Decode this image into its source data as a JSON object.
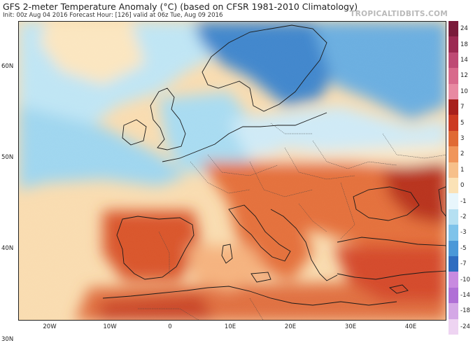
{
  "header": {
    "title": "GFS 2-meter Temperature Anomaly (°C) (based on CFSR 1981-2010 Climatology)",
    "subtitle": "Init: 00z Aug 04 2016   Forecast Hour: [126]   valid at 06z Tue, Aug 09 2016",
    "brand": "TROPICALTIDBITS.COM"
  },
  "map": {
    "lat_labels": [
      {
        "text": "60N",
        "lat": 60
      },
      {
        "text": "50N",
        "lat": 50
      },
      {
        "text": "40N",
        "lat": 40
      },
      {
        "text": "30N",
        "lat": 30
      }
    ],
    "lon_labels": [
      {
        "text": "20W",
        "lon": -20
      },
      {
        "text": "10W",
        "lon": -10
      },
      {
        "text": "0",
        "lon": 0
      },
      {
        "text": "10E",
        "lon": 10
      },
      {
        "text": "20E",
        "lon": 20
      },
      {
        "text": "30E",
        "lon": 30
      },
      {
        "text": "40E",
        "lon": 40
      }
    ]
  },
  "colorbar": {
    "levels": [
      {
        "label": "24",
        "color": "#7a1b3a"
      },
      {
        "label": "18",
        "color": "#9c2a52"
      },
      {
        "label": "14",
        "color": "#be4a74"
      },
      {
        "label": "12",
        "color": "#d86a8c"
      },
      {
        "label": "10",
        "color": "#e88aa2"
      },
      {
        "label": "7",
        "color": "#a8201c"
      },
      {
        "label": "5",
        "color": "#cc3a22"
      },
      {
        "label": "3",
        "color": "#e06a34"
      },
      {
        "label": "2",
        "color": "#f0955a"
      },
      {
        "label": "1",
        "color": "#f7c08a"
      },
      {
        "label": "0",
        "color": "#fbe2b6"
      },
      {
        "label": "-1",
        "color": "#e8f6fc"
      },
      {
        "label": "-2",
        "color": "#b5e0f2"
      },
      {
        "label": "-3",
        "color": "#7ec3ea"
      },
      {
        "label": "-5",
        "color": "#4a98d8"
      },
      {
        "label": "-7",
        "color": "#2e6cc0"
      },
      {
        "label": "-10",
        "color": "#c88ae0"
      },
      {
        "label": "-14",
        "color": "#b070d6"
      },
      {
        "label": "-18",
        "color": "#d4a8e6"
      },
      {
        "label": "-24",
        "color": "#eed4f2"
      }
    ]
  },
  "colors": {
    "ocean_warm": "#fbe2b6",
    "ocean_cool": "#b5e0f2",
    "land_hot": "#e06a34",
    "land_cold": "#4a98d8",
    "coast": "#1a1a1a"
  }
}
